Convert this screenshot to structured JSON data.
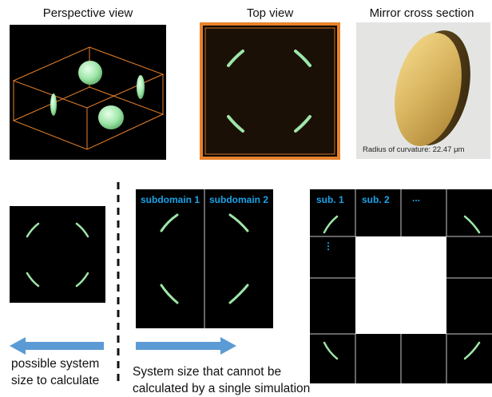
{
  "titles": {
    "perspective": "Perspective view",
    "top": "Top view",
    "mirror": "Mirror cross section"
  },
  "mirror_caption": "Radius of curvature: 22.47 μm",
  "subdomains": {
    "s1": "subdomain 1",
    "s2": "subdomain 2"
  },
  "grid_labels": {
    "sub1": "sub. 1",
    "sub2": "sub. 2",
    "dots_h": "...",
    "dots_v": "⋮"
  },
  "captions": {
    "left_line1": "possible system",
    "left_line2": "size to calculate",
    "right_line1": "System size that cannot be",
    "right_line2": "calculated by a single simulation"
  },
  "colors": {
    "mirror_green": "#9ee6a8",
    "frame_orange": "#e8822b",
    "arrow_blue": "#5b9bd5",
    "label_blue": "#1aa3e8"
  }
}
